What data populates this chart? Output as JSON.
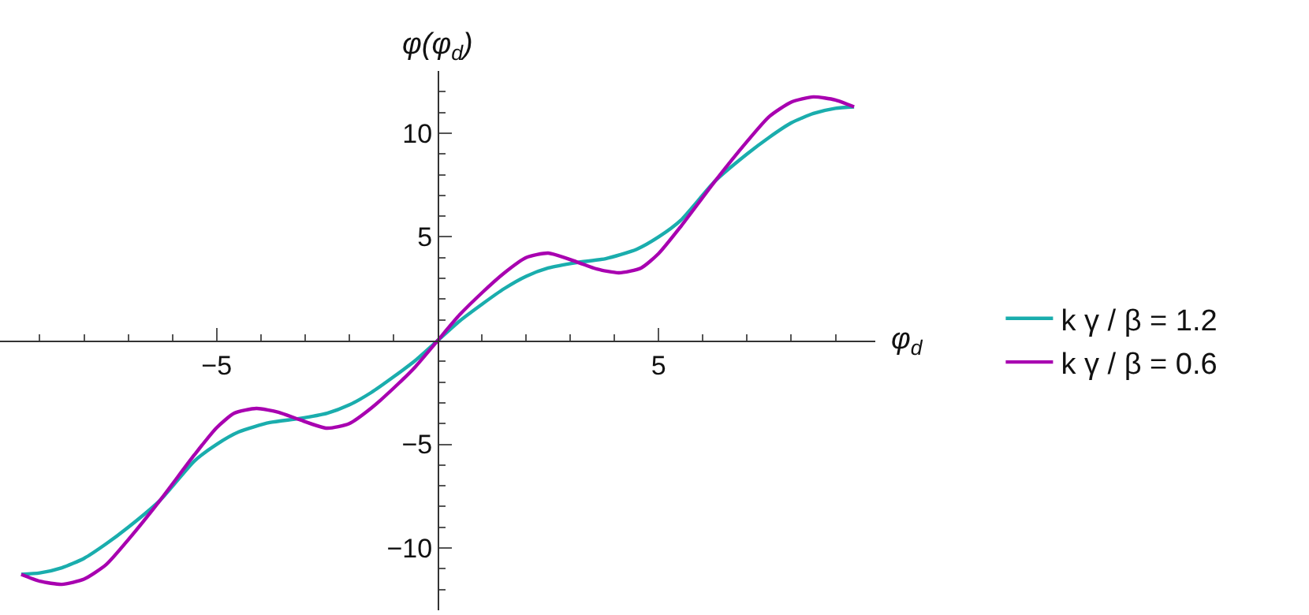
{
  "chart_data": {
    "type": "line",
    "xlabel": "φ$_{d}$",
    "ylabel": "φ(φ$_{d}$)",
    "series": [
      {
        "name": "k γ / β = 1.2",
        "color": "#1aadad",
        "x": [
          -9.42,
          -9,
          -8.5,
          -8,
          -7.5,
          -7,
          -6.28,
          -5.5,
          -5,
          -4.5,
          -3.8,
          -3.14,
          -2.5,
          -2,
          -1.5,
          -1,
          -0.5,
          0,
          0.5,
          1,
          1.5,
          2,
          2.5,
          3.14,
          3.8,
          4.5,
          5,
          5.5,
          6.28,
          7,
          7.5,
          8,
          8.5,
          9,
          9.42
        ],
        "values": [
          -11.27,
          -11.2,
          -10.95,
          -10.5,
          -9.8,
          -9.0,
          -7.7,
          -5.8,
          -5.0,
          -4.4,
          -3.95,
          -3.76,
          -3.5,
          -3.1,
          -2.5,
          -1.75,
          -0.95,
          0,
          0.95,
          1.75,
          2.5,
          3.1,
          3.5,
          3.76,
          3.95,
          4.4,
          5.0,
          5.8,
          7.7,
          9.0,
          9.8,
          10.5,
          10.95,
          11.2,
          11.27
        ]
      },
      {
        "name": "k γ / β = 0.6",
        "color": "#a800b0",
        "x": [
          -9.42,
          -9,
          -8.5,
          -8,
          -7.5,
          -7,
          -6.28,
          -5.5,
          -5,
          -4.6,
          -4.1,
          -3.6,
          -3.14,
          -2.5,
          -2,
          -1.5,
          -1,
          -0.5,
          0,
          0.5,
          1,
          1.5,
          2,
          2.5,
          3.14,
          3.6,
          4.1,
          4.6,
          5,
          5.5,
          6.28,
          7,
          7.5,
          8,
          8.5,
          9,
          9.42
        ],
        "values": [
          -11.27,
          -11.6,
          -11.75,
          -11.5,
          -10.8,
          -9.6,
          -7.7,
          -5.5,
          -4.2,
          -3.5,
          -3.27,
          -3.45,
          -3.8,
          -4.22,
          -4.0,
          -3.25,
          -2.3,
          -1.25,
          0,
          1.25,
          2.3,
          3.25,
          4.0,
          4.22,
          3.8,
          3.45,
          3.27,
          3.5,
          4.2,
          5.5,
          7.7,
          9.6,
          10.8,
          11.5,
          11.75,
          11.6,
          11.27
        ]
      }
    ],
    "xlim": [
      -9.9,
      9.9
    ],
    "ylim": [
      -13,
      13
    ],
    "xticks": [
      {
        "value": -9,
        "label": null
      },
      {
        "value": -8,
        "label": null
      },
      {
        "value": -7,
        "label": null
      },
      {
        "value": -6,
        "label": null
      },
      -5,
      {
        "value": -4,
        "label": null
      },
      {
        "value": -3,
        "label": null
      },
      {
        "value": -2,
        "label": null
      },
      {
        "value": -1,
        "label": null
      },
      {
        "value": 1,
        "label": null
      },
      {
        "value": 2,
        "label": null
      },
      {
        "value": 3,
        "label": null
      },
      {
        "value": 4,
        "label": null
      },
      5,
      {
        "value": 6,
        "label": null
      },
      {
        "value": 7,
        "label": null
      },
      {
        "value": 8,
        "label": null
      },
      {
        "value": 9,
        "label": null
      }
    ],
    "yticks": [
      {
        "value": -12,
        "label": null
      },
      {
        "value": -11,
        "label": null
      },
      -10,
      {
        "value": -9,
        "label": null
      },
      {
        "value": -8,
        "label": null
      },
      {
        "value": -7,
        "label": null
      },
      {
        "value": -6,
        "label": null
      },
      -5,
      {
        "value": -4,
        "label": null
      },
      {
        "value": -3,
        "label": null
      },
      {
        "value": -2,
        "label": null
      },
      {
        "value": -1,
        "label": null
      },
      {
        "value": 1,
        "label": null
      },
      {
        "value": 2,
        "label": null
      },
      {
        "value": 3,
        "label": null
      },
      {
        "value": 4,
        "label": null
      },
      5,
      {
        "value": 6,
        "label": null
      },
      {
        "value": 7,
        "label": null
      },
      {
        "value": 8,
        "label": null
      },
      {
        "value": 9,
        "label": null
      },
      10,
      {
        "value": 11,
        "label": null
      },
      {
        "value": 12,
        "label": null
      }
    ],
    "legend": "right",
    "marker": "none",
    "line_style": "solid"
  }
}
